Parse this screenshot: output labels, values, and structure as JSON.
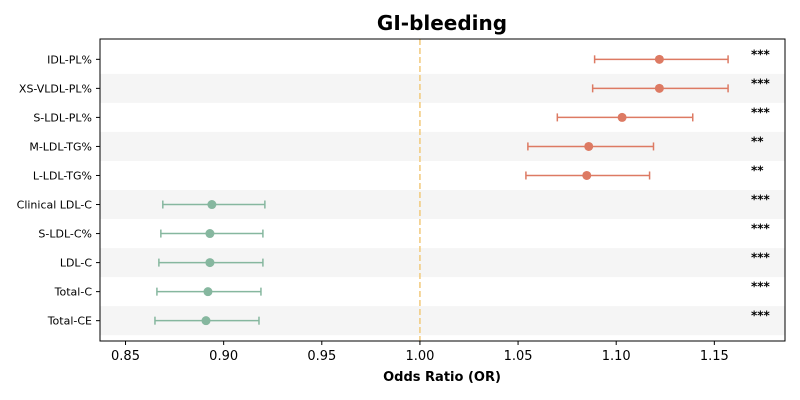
{
  "chart_data": {
    "type": "forest",
    "title": "GI-bleeding",
    "xlabel": "Odds Ratio (OR)",
    "ylabel": "",
    "xlim": [
      0.837,
      1.186
    ],
    "xticks": [
      "0.85",
      "0.90",
      "0.95",
      "1.00",
      "1.05",
      "1.10",
      "1.15"
    ],
    "reference_line": 1.0,
    "grid": false,
    "colors": {
      "positive": "#dd7a63",
      "negative": "#86b79f",
      "reference": "#f2c97a",
      "band": "#f5f5f5"
    },
    "rows": [
      {
        "label": "IDL-PL%",
        "or": 1.122,
        "lower": 1.089,
        "upper": 1.157,
        "sig": "***"
      },
      {
        "label": "XS-VLDL-PL%",
        "or": 1.122,
        "lower": 1.088,
        "upper": 1.157,
        "sig": "***"
      },
      {
        "label": "S-LDL-PL%",
        "or": 1.103,
        "lower": 1.07,
        "upper": 1.139,
        "sig": "***"
      },
      {
        "label": "M-LDL-TG%",
        "or": 1.086,
        "lower": 1.055,
        "upper": 1.119,
        "sig": "**"
      },
      {
        "label": "L-LDL-TG%",
        "or": 1.085,
        "lower": 1.054,
        "upper": 1.117,
        "sig": "**"
      },
      {
        "label": "Clinical LDL-C",
        "or": 0.894,
        "lower": 0.869,
        "upper": 0.921,
        "sig": "***"
      },
      {
        "label": "S-LDL-C%",
        "or": 0.893,
        "lower": 0.868,
        "upper": 0.92,
        "sig": "***"
      },
      {
        "label": "LDL-C",
        "or": 0.893,
        "lower": 0.867,
        "upper": 0.92,
        "sig": "***"
      },
      {
        "label": "Total-C",
        "or": 0.892,
        "lower": 0.866,
        "upper": 0.919,
        "sig": "***"
      },
      {
        "label": "Total-CE",
        "or": 0.891,
        "lower": 0.865,
        "upper": 0.918,
        "sig": "***"
      }
    ]
  }
}
